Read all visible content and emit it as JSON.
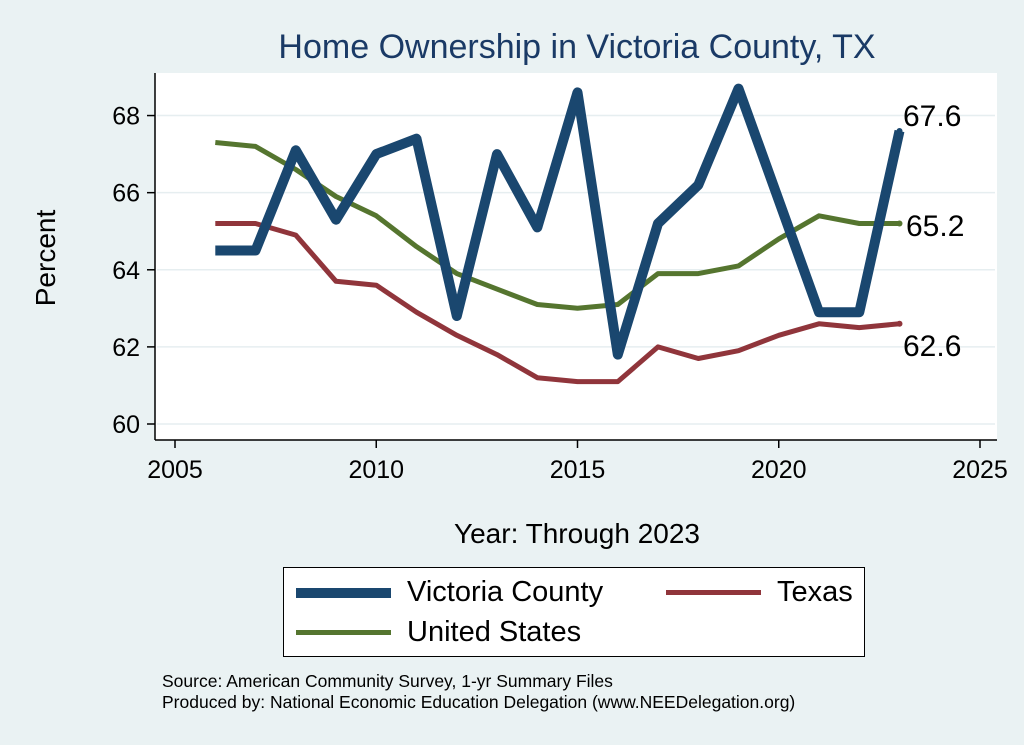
{
  "chart_data": {
    "type": "line",
    "title": "Home Ownership in Victoria County, TX",
    "xlabel": "Year: Through 2023",
    "ylabel": "Percent",
    "xlim": [
      2005,
      2025
    ],
    "ylim": [
      60,
      69
    ],
    "x_ticks": [
      2005,
      2010,
      2015,
      2020,
      2025
    ],
    "y_ticks": [
      60,
      62,
      64,
      66,
      68
    ],
    "grid": true,
    "x": [
      2006,
      2007,
      2008,
      2009,
      2010,
      2011,
      2012,
      2013,
      2014,
      2015,
      2016,
      2017,
      2018,
      2019,
      2020,
      2021,
      2022,
      2023
    ],
    "series": [
      {
        "name": "Victoria County",
        "color": "#1a476f",
        "values": [
          64.5,
          64.5,
          67.1,
          65.3,
          67.0,
          67.4,
          62.8,
          67.0,
          65.1,
          68.6,
          61.8,
          65.2,
          66.2,
          68.7,
          65.8,
          62.9,
          62.9,
          67.6
        ]
      },
      {
        "name": "Texas",
        "color": "#90353b",
        "values": [
          65.2,
          65.2,
          64.9,
          63.7,
          63.6,
          62.9,
          62.3,
          61.8,
          61.2,
          61.1,
          61.1,
          62.0,
          61.7,
          61.9,
          62.3,
          62.6,
          62.5,
          62.6
        ]
      },
      {
        "name": "United States",
        "color": "#55752f",
        "values": [
          67.3,
          67.2,
          66.6,
          65.9,
          65.4,
          64.6,
          63.9,
          63.5,
          63.1,
          63.0,
          63.1,
          63.9,
          63.9,
          64.1,
          64.8,
          65.4,
          65.2,
          65.2
        ]
      }
    ],
    "end_labels": [
      "67.6",
      "62.6",
      "65.2"
    ],
    "legend_position": "bottom"
  },
  "notes": {
    "source": "Source: American Community Survey, 1-yr Summary Files",
    "produced_by": "Produced by: National Economic Education Delegation (www.NEEDelegation.org)"
  }
}
